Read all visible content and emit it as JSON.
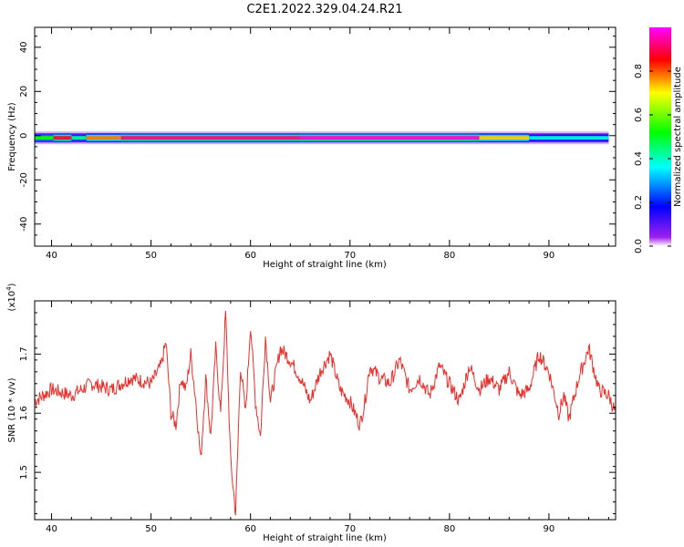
{
  "title": "C2E1.2022.329.04.24.R21",
  "chart_data": [
    {
      "type": "heatmap",
      "xlabel": "Height of straight line (km)",
      "ylabel": "Frequency (Hz)",
      "xlim": [
        38.3,
        96.7
      ],
      "ylim": [
        -50,
        49
      ],
      "xticks": [
        40,
        50,
        60,
        70,
        80,
        90
      ],
      "yticks": [
        -40,
        -20,
        0,
        20,
        40
      ],
      "colorbar": {
        "label": "Normalized spectral amplitude",
        "range": [
          0,
          1
        ],
        "ticks": [
          0.0,
          0.2,
          0.4,
          0.6,
          0.8
        ],
        "colormap": "rainbow"
      },
      "band": {
        "center_freq_hz": -1,
        "segments": [
          {
            "x": [
              38.3,
              40.2
            ],
            "amplitude": 0.5
          },
          {
            "x": [
              40.2,
              42.0
            ],
            "amplitude": 0.85
          },
          {
            "x": [
              42.0,
              43.5
            ],
            "amplitude": 0.4
          },
          {
            "x": [
              43.5,
              47.0
            ],
            "amplitude": 0.75
          },
          {
            "x": [
              47.0,
              65.0
            ],
            "amplitude": 0.9
          },
          {
            "x": [
              65.0,
              83.0
            ],
            "amplitude": 0.95
          },
          {
            "x": [
              83.0,
              88.0
            ],
            "amplitude": 0.7
          },
          {
            "x": [
              88.0,
              96.0
            ],
            "amplitude": 0.35
          }
        ]
      }
    },
    {
      "type": "line",
      "xlabel": "Height of straight line (km)",
      "ylabel": "SNR (10 * v/v)",
      "yscale_label": "(x10",
      "yscale_exp": "4",
      "yscale_close": ")",
      "xlim": [
        38.3,
        96.7
      ],
      "ylim": [
        1.42,
        1.79
      ],
      "xticks": [
        40,
        50,
        60,
        70,
        80,
        90
      ],
      "yticks": [
        1.5,
        1.6,
        1.7
      ],
      "color": "#e8302c",
      "x": [
        38.3,
        40,
        42,
        44,
        46,
        48,
        50,
        51,
        51.5,
        52,
        52.5,
        53,
        53.5,
        54,
        54.5,
        55,
        55.5,
        56,
        56.5,
        57,
        57.5,
        58,
        58.5,
        59,
        59.5,
        60,
        60.5,
        61,
        61.5,
        62,
        63,
        64,
        65,
        66,
        67,
        68,
        69,
        70,
        71,
        71.5,
        72,
        73,
        74,
        75,
        76,
        77,
        78,
        79,
        80,
        81,
        82,
        83,
        84,
        85,
        86,
        87,
        88,
        89,
        90,
        91,
        91.5,
        92,
        93,
        94,
        95,
        96,
        96.7
      ],
      "y": [
        1.62,
        1.64,
        1.63,
        1.65,
        1.64,
        1.66,
        1.65,
        1.68,
        1.72,
        1.6,
        1.58,
        1.66,
        1.64,
        1.7,
        1.62,
        1.52,
        1.66,
        1.56,
        1.71,
        1.6,
        1.77,
        1.52,
        1.43,
        1.68,
        1.6,
        1.75,
        1.62,
        1.56,
        1.73,
        1.62,
        1.71,
        1.69,
        1.66,
        1.62,
        1.67,
        1.7,
        1.64,
        1.62,
        1.58,
        1.62,
        1.68,
        1.66,
        1.65,
        1.69,
        1.64,
        1.66,
        1.63,
        1.68,
        1.65,
        1.62,
        1.68,
        1.64,
        1.66,
        1.64,
        1.67,
        1.63,
        1.64,
        1.7,
        1.67,
        1.6,
        1.63,
        1.59,
        1.66,
        1.71,
        1.64,
        1.63,
        1.6
      ]
    }
  ]
}
